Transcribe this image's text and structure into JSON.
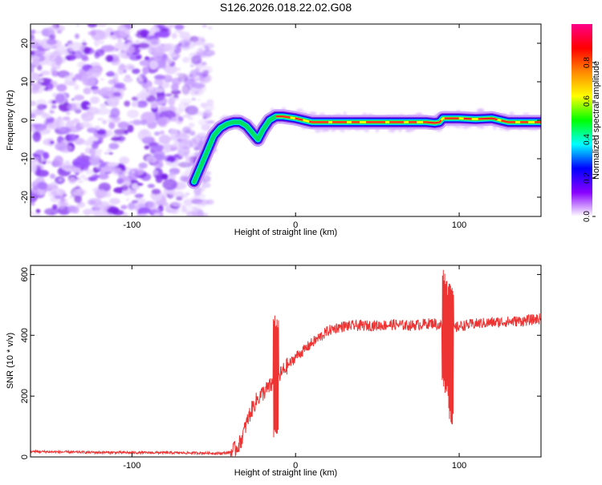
{
  "title": "S126.2026.018.22.02.G08",
  "chart_data": [
    {
      "type": "heatmap",
      "title": "S126.2026.018.22.02.G08",
      "xlabel": "Height of straight line (km)",
      "ylabel": "Frequency (Hz)",
      "xlim": [
        -162,
        150
      ],
      "ylim": [
        -25,
        25
      ],
      "x_ticks": [
        -100,
        0,
        100
      ],
      "y_ticks": [
        -20,
        -10,
        0,
        10,
        20
      ],
      "ridge": {
        "x": [
          -62,
          -58,
          -54,
          -50,
          -46,
          -42,
          -38,
          -34,
          -30,
          -26,
          -23,
          -20,
          -16,
          -12,
          -8,
          0,
          10,
          20,
          30,
          40,
          50,
          60,
          70,
          80,
          85,
          88,
          90,
          95,
          100,
          110,
          120,
          130,
          140,
          150
        ],
        "y": [
          -16,
          -12,
          -8,
          -4,
          -2,
          -1,
          -0.5,
          -0.5,
          -1.5,
          -3.5,
          -5,
          -2.5,
          0,
          1,
          1,
          0.5,
          -0.5,
          -0.5,
          -0.5,
          -0.5,
          -0.5,
          -0.5,
          -0.5,
          -0.5,
          -0.7,
          -0.5,
          0.5,
          0.5,
          0.5,
          0.3,
          0.5,
          -0.5,
          -0.5,
          -0.5
        ]
      },
      "noise_region_x": [
        -162,
        -58
      ],
      "colorbar": {
        "label": "Normalized spectral amplitude",
        "range": [
          0,
          1
        ],
        "ticks": [
          "0.0",
          "0.2",
          "0.4",
          "0.6",
          "0.8"
        ],
        "colors": [
          "#ffffff",
          "#8800ff",
          "#0000ff",
          "#00ffff",
          "#00ff00",
          "#ffff00",
          "#ff8800",
          "#ff0000",
          "#ff0088"
        ]
      }
    },
    {
      "type": "line",
      "xlabel": "Height of straight line (km)",
      "ylabel": "SNR (10 * v/v)",
      "xlim": [
        -162,
        150
      ],
      "ylim": [
        0,
        630
      ],
      "x_ticks": [
        -100,
        0,
        100
      ],
      "y_ticks": [
        0,
        200,
        400,
        600
      ],
      "color": "#ee3333",
      "series": [
        {
          "x": [
            -162,
            -140,
            -120,
            -100,
            -80,
            -60,
            -45,
            -40,
            -37,
            -34,
            -32,
            -30,
            -28,
            -26,
            -24,
            -22,
            -20,
            -18,
            -16,
            -14,
            -12,
            -10,
            -8,
            -5,
            -2,
            0,
            5,
            10,
            15,
            20,
            25,
            30,
            40,
            50,
            60,
            70,
            80,
            85,
            88,
            90,
            92,
            94,
            96,
            100,
            110,
            120,
            130,
            140,
            150
          ],
          "y": [
            18,
            16,
            15,
            14,
            14,
            13,
            12,
            15,
            25,
            45,
            75,
            110,
            140,
            165,
            185,
            200,
            210,
            220,
            230,
            240,
            255,
            265,
            280,
            300,
            315,
            330,
            350,
            375,
            395,
            415,
            425,
            430,
            432,
            432,
            435,
            432,
            438,
            440,
            430,
            440,
            400,
            380,
            420,
            430,
            438,
            442,
            445,
            448,
            455
          ]
        }
      ],
      "spikes": [
        {
          "x": -12,
          "min": 60,
          "max": 480
        },
        {
          "x": 91,
          "min": 210,
          "max": 625
        },
        {
          "x": 93,
          "min": 180,
          "max": 580
        },
        {
          "x": 95,
          "min": 105,
          "max": 570
        }
      ]
    }
  ]
}
